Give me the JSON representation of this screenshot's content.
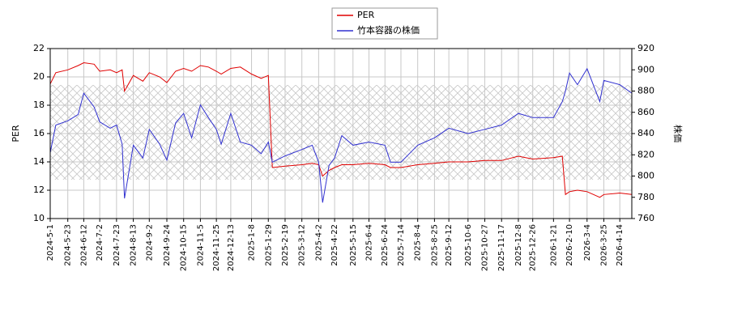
{
  "chart_data": {
    "type": "line",
    "x": [
      "2024-5-1",
      "2024-5-8",
      "2024-5-23",
      "2024-6-5",
      "2024-6-12",
      "2024-6-25",
      "2024-7-2",
      "2024-7-15",
      "2024-7-23",
      "2024-7-30",
      "2024-8-2",
      "2024-8-13",
      "2024-8-25",
      "2024-9-2",
      "2024-9-15",
      "2024-9-24",
      "2024-10-5",
      "2024-10-15",
      "2024-10-25",
      "2024-11-5",
      "2024-11-15",
      "2024-11-25",
      "2024-12-1",
      "2024-12-13",
      "2024-12-25",
      "2025-1-8",
      "2025-1-20",
      "2025-1-29",
      "2025-2-3",
      "2025-2-19",
      "2025-3-12",
      "2025-3-25",
      "2025-4-2",
      "2025-4-7",
      "2025-4-15",
      "2025-4-22",
      "2025-5-1",
      "2025-5-15",
      "2025-6-4",
      "2025-6-24",
      "2025-7-1",
      "2025-7-14",
      "2025-8-4",
      "2025-8-25",
      "2025-9-12",
      "2025-10-6",
      "2025-10-27",
      "2025-11-17",
      "2025-12-8",
      "2025-12-26",
      "2026-1-21",
      "2026-2-1",
      "2026-2-5",
      "2026-2-10",
      "2026-2-20",
      "2026-3-4",
      "2026-3-20",
      "2026-3-25",
      "2026-4-14",
      "2026-4-29"
    ],
    "series": [
      {
        "name": "PER",
        "color": "#e00000",
        "axis": "y",
        "values": [
          19.5,
          20.3,
          20.5,
          20.8,
          21.0,
          20.9,
          20.4,
          20.5,
          20.3,
          20.5,
          19.0,
          20.1,
          19.7,
          20.3,
          20.0,
          19.6,
          20.4,
          20.6,
          20.4,
          20.8,
          20.7,
          20.4,
          20.2,
          20.6,
          20.7,
          20.2,
          19.9,
          20.1,
          13.6,
          13.7,
          13.8,
          13.9,
          13.8,
          13.0,
          13.4,
          13.6,
          13.8,
          13.8,
          13.9,
          13.8,
          13.6,
          13.6,
          13.8,
          13.9,
          14.0,
          14.0,
          14.1,
          14.1,
          14.4,
          14.2,
          14.3,
          14.4,
          11.7,
          11.9,
          12.0,
          11.9,
          11.5,
          11.7,
          11.8,
          11.7
        ]
      },
      {
        "name": "竹本容器の株価",
        "color": "#3030d0",
        "axis": "y2",
        "values": [
          822,
          848,
          852,
          858,
          878,
          865,
          851,
          845,
          848,
          830,
          779,
          829,
          817,
          844,
          830,
          815,
          850,
          859,
          836,
          867,
          855,
          844,
          830,
          859,
          832,
          829,
          821,
          832,
          813,
          819,
          825,
          829,
          813,
          775,
          810,
          817,
          838,
          829,
          832,
          829,
          813,
          813,
          829,
          836,
          845,
          840,
          844,
          848,
          859,
          855,
          855,
          870,
          880,
          897,
          886,
          901,
          870,
          890,
          886,
          878
        ]
      }
    ],
    "xlim": [
      "2024-5-1",
      "2026-4-29"
    ],
    "xticks": [
      "2024-5-1",
      "2024-5-23",
      "2024-6-12",
      "2024-7-2",
      "2024-7-23",
      "2024-8-13",
      "2024-9-2",
      "2024-9-24",
      "2024-10-15",
      "2024-11-5",
      "2024-11-25",
      "2024-12-13",
      "2025-1-8",
      "2025-1-29",
      "2025-2-19",
      "2025-3-12",
      "2025-4-2",
      "2025-4-22",
      "2025-5-15",
      "2025-6-4",
      "2025-6-24",
      "2025-7-14",
      "2025-8-4",
      "2025-8-25",
      "2025-9-12",
      "2025-10-6",
      "2025-10-27",
      "2025-11-17",
      "2025-12-8",
      "2025-12-26",
      "2026-1-21",
      "2026-2-10",
      "2026-3-4",
      "2026-3-25",
      "2026-4-14"
    ],
    "ylabel": "PER",
    "ylim": [
      10,
      22
    ],
    "yticks": [
      10,
      12,
      14,
      16,
      18,
      20,
      22
    ],
    "y2label": "株価",
    "y2lim": [
      760,
      920
    ],
    "y2ticks": [
      760,
      780,
      800,
      820,
      840,
      860,
      880,
      900,
      920
    ],
    "grid": true,
    "legend": "top"
  }
}
